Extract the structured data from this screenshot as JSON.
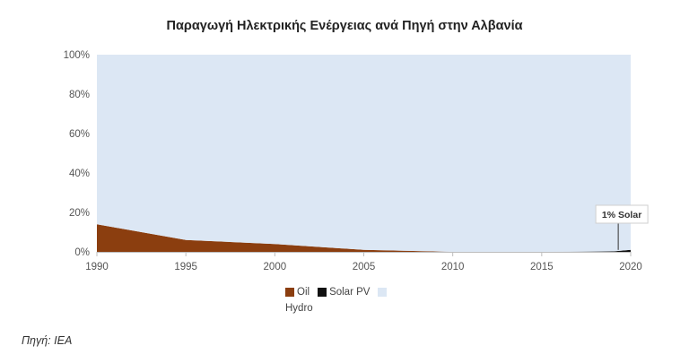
{
  "chart_data": {
    "type": "area",
    "stacked": "percent",
    "title": "Παραγωγή Ηλεκτρικής Ενέργειας ανά Πηγή στην Αλβανία",
    "x": [
      1990,
      1995,
      2000,
      2005,
      2010,
      2015,
      2019,
      2020
    ],
    "series": [
      {
        "name": "Oil",
        "color": "#8B3E0F",
        "values": [
          14,
          6,
          4,
          1,
          0,
          0,
          0,
          0
        ]
      },
      {
        "name": "Solar PV",
        "color": "#111111",
        "values": [
          0,
          0,
          0,
          0,
          0,
          0,
          0.2,
          1
        ]
      },
      {
        "name": "Hydro",
        "color": "#DCE7F4",
        "values": [
          86,
          94,
          96,
          99,
          100,
          100,
          99.8,
          99
        ]
      }
    ],
    "x_ticks": [
      "1990",
      "1995",
      "2000",
      "2005",
      "2010",
      "2015",
      "2020"
    ],
    "y_ticks": [
      "0%",
      "20%",
      "40%",
      "60%",
      "80%",
      "100%"
    ],
    "xlim": [
      1990,
      2020
    ],
    "ylim": [
      0,
      100
    ],
    "grid": false,
    "legend_position": "bottom",
    "annotation": {
      "text": "1% Solar",
      "x": 2019.3,
      "y": 1
    }
  },
  "source": "Πηγή: IEA"
}
